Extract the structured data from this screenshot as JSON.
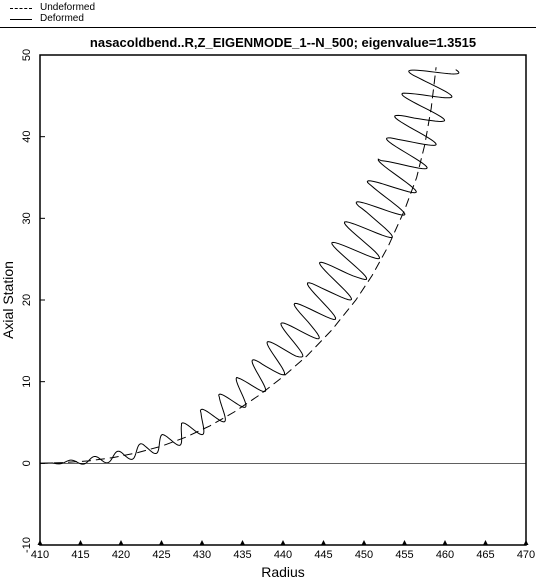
{
  "chart_data": {
    "type": "line",
    "title": "nasacoldbend..R,Z_EIGENMODE_1--N_500; eigenvalue=1.3515",
    "xlabel": "Radius",
    "ylabel": "Axial Station",
    "xlim": [
      410,
      470
    ],
    "ylim": [
      -10,
      50
    ],
    "xticks": [
      "410",
      "415",
      "420",
      "425",
      "430",
      "435",
      "440",
      "445",
      "450",
      "455",
      "460",
      "465",
      "470"
    ],
    "yticks": [
      "-10",
      "0",
      "10",
      "20",
      "30",
      "40",
      "50"
    ],
    "legend_position": "top-left",
    "grid": false,
    "series": [
      {
        "name": "Undeformed",
        "style": "dashed",
        "x": [
          410,
          413,
          416,
          419,
          422,
          425,
          428,
          431,
          434,
          437,
          440,
          443,
          446,
          449,
          451,
          453,
          455,
          456.5,
          457.5,
          458.3,
          458.9
        ],
        "y": [
          0,
          0.1,
          0.3,
          0.7,
          1.3,
          2.1,
          3.2,
          4.6,
          6.3,
          8.3,
          10.6,
          13.2,
          16.3,
          20.0,
          23.0,
          26.6,
          31.0,
          35.0,
          39.0,
          43.5,
          48.5
        ]
      },
      {
        "name": "Deformed",
        "style": "solid",
        "x": [
          410,
          413,
          415.5,
          418,
          420.5,
          423,
          425.5,
          428,
          430.5,
          433,
          435.5,
          438,
          440.5,
          443,
          445.5,
          447.5,
          449.5,
          451.5,
          453,
          454.5,
          455.7,
          456.8,
          457.6,
          458.3,
          458.9
        ],
        "y": [
          0,
          0.1,
          0.25,
          0.55,
          1.0,
          1.7,
          2.6,
          3.8,
          5.3,
          7.1,
          9.2,
          11.6,
          14.3,
          17.4,
          20.8,
          23.7,
          26.9,
          30.2,
          33.0,
          36.0,
          39.0,
          42.0,
          44.5,
          46.8,
          48.9
        ],
        "mode_wavelength": 3.0,
        "mode_amplitude": 3.0
      }
    ]
  },
  "legend": {
    "items": [
      {
        "label": "Undeformed",
        "style": "dashed"
      },
      {
        "label": "Deformed",
        "style": "solid"
      }
    ]
  }
}
